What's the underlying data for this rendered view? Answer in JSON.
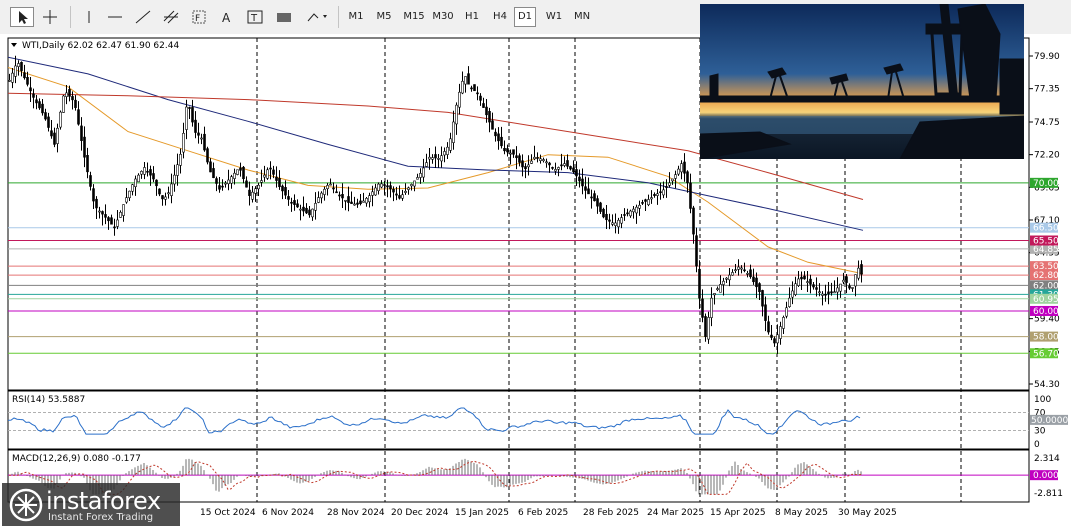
{
  "toolbar": {
    "timeframes": [
      "M1",
      "M5",
      "M15",
      "M30",
      "H1",
      "H4",
      "D1",
      "W1",
      "MN"
    ],
    "active_timeframe": "D1"
  },
  "chart_data": {
    "type": "candlestick",
    "symbol": "WTI",
    "period": "Daily",
    "ohlc_label": "WTI,Daily  62.02 62.47 61.90 62.44",
    "x_labels": [
      "15 Oct 2024",
      "6 Nov 2024",
      "28 Nov 2024",
      "20 Dec 2024",
      "15 Jan 2025",
      "6 Feb 2025",
      "28 Feb 2025",
      "24 Mar 2025",
      "15 Apr 2025",
      "8 May 2025",
      "30 May 2025"
    ],
    "y_ticks": [
      "79.90",
      "77.35",
      "74.75",
      "72.20",
      "69.65",
      "67.10",
      "64.55",
      "59.40",
      "56.85",
      "54.30"
    ],
    "ylim": [
      54.3,
      79.9
    ],
    "price_levels": [
      {
        "value": 70.0,
        "label": "70.00",
        "color": "#2ea62e"
      },
      {
        "value": 66.5,
        "label": "66.50",
        "color": "#a9c9e8"
      },
      {
        "value": 64.85,
        "label": "64.85",
        "color": "#b0b0b0"
      },
      {
        "value": 65.5,
        "label": "65.50",
        "color": "#c2185b"
      },
      {
        "value": 63.5,
        "label": "63.50",
        "color": "#e57373"
      },
      {
        "value": 62.8,
        "label": "62.80",
        "color": "#e57373"
      },
      {
        "value": 62.0,
        "label": "62.00",
        "color": "#808080"
      },
      {
        "value": 61.3,
        "label": "61.30",
        "color": "#26a69a"
      },
      {
        "value": 60.95,
        "label": "60.95",
        "color": "#9fd39f"
      },
      {
        "value": 60.0,
        "label": "60.00",
        "color": "#c000c0"
      },
      {
        "value": 58.0,
        "label": "58.00",
        "color": "#b0a070"
      },
      {
        "value": 56.7,
        "label": "56.70",
        "color": "#66cc33"
      }
    ],
    "close_series": [
      [
        0,
        78.0
      ],
      [
        8,
        79.5
      ],
      [
        15,
        78.2
      ],
      [
        25,
        76.5
      ],
      [
        35,
        75.2
      ],
      [
        45,
        73.0
      ],
      [
        55,
        77.2
      ],
      [
        65,
        76.3
      ],
      [
        75,
        72.0
      ],
      [
        85,
        68.2
      ],
      [
        95,
        67.4
      ],
      [
        105,
        66.5
      ],
      [
        115,
        68.5
      ],
      [
        125,
        70.2
      ],
      [
        135,
        71.2
      ],
      [
        145,
        70.2
      ],
      [
        152,
        68.7
      ],
      [
        158,
        69.0
      ],
      [
        165,
        70.6
      ],
      [
        172,
        72.5
      ],
      [
        178,
        76.6
      ],
      [
        185,
        74.0
      ],
      [
        192,
        73.5
      ],
      [
        200,
        71.0
      ],
      [
        210,
        69.5
      ],
      [
        220,
        70.3
      ],
      [
        230,
        71.2
      ],
      [
        240,
        69.0
      ],
      [
        250,
        69.9
      ],
      [
        260,
        71.3
      ],
      [
        270,
        69.7
      ],
      [
        280,
        68.6
      ],
      [
        290,
        68.0
      ],
      [
        300,
        67.5
      ],
      [
        310,
        69.0
      ],
      [
        320,
        70.0
      ],
      [
        330,
        69.0
      ],
      [
        340,
        68.4
      ],
      [
        350,
        68.3
      ],
      [
        360,
        69.0
      ],
      [
        370,
        70.0
      ],
      [
        380,
        69.6
      ],
      [
        390,
        68.8
      ],
      [
        400,
        69.7
      ],
      [
        410,
        70.6
      ],
      [
        420,
        72.0
      ],
      [
        430,
        71.9
      ],
      [
        440,
        73.0
      ],
      [
        448,
        76.5
      ],
      [
        455,
        78.5
      ],
      [
        460,
        77.5
      ],
      [
        468,
        77.0
      ],
      [
        476,
        75.5
      ],
      [
        485,
        73.8
      ],
      [
        495,
        72.5
      ],
      [
        505,
        72.2
      ],
      [
        515,
        71.0
      ],
      [
        525,
        72.0
      ],
      [
        535,
        71.8
      ],
      [
        545,
        71.0
      ],
      [
        555,
        71.5
      ],
      [
        565,
        70.8
      ],
      [
        575,
        69.5
      ],
      [
        585,
        68.6
      ],
      [
        595,
        67.2
      ],
      [
        605,
        66.8
      ],
      [
        615,
        67.5
      ],
      [
        625,
        68.0
      ],
      [
        635,
        68.5
      ],
      [
        645,
        69.0
      ],
      [
        655,
        69.5
      ],
      [
        665,
        70.5
      ],
      [
        672,
        71.5
      ],
      [
        678,
        70.0
      ],
      [
        684,
        66.0
      ],
      [
        690,
        61.0
      ],
      [
        696,
        58.0
      ],
      [
        702,
        61.0
      ],
      [
        710,
        62.0
      ],
      [
        720,
        62.8
      ],
      [
        730,
        63.5
      ],
      [
        740,
        62.8
      ],
      [
        750,
        61.5
      ],
      [
        758,
        58.5
      ],
      [
        765,
        57.5
      ],
      [
        772,
        59.0
      ],
      [
        780,
        61.0
      ],
      [
        788,
        62.5
      ],
      [
        795,
        62.5
      ],
      [
        805,
        61.8
      ],
      [
        815,
        61.2
      ],
      [
        825,
        61.5
      ],
      [
        835,
        62.5
      ],
      [
        842,
        61.5
      ],
      [
        848,
        63.5
      ],
      [
        855,
        62.4
      ]
    ],
    "ma_series": [
      {
        "name": "MA fast",
        "color": "#e59a2a",
        "points": [
          [
            0,
            79.0
          ],
          [
            60,
            77.5
          ],
          [
            120,
            74.0
          ],
          [
            180,
            72.5
          ],
          [
            240,
            71.0
          ],
          [
            300,
            69.8
          ],
          [
            360,
            69.5
          ],
          [
            420,
            69.6
          ],
          [
            480,
            70.8
          ],
          [
            540,
            72.2
          ],
          [
            600,
            72.0
          ],
          [
            660,
            70.5
          ],
          [
            700,
            68.5
          ],
          [
            760,
            65.0
          ],
          [
            800,
            63.8
          ],
          [
            855,
            62.9
          ]
        ]
      },
      {
        "name": "MA medium",
        "color": "#1f2a7a",
        "points": [
          [
            0,
            79.8
          ],
          [
            80,
            78.5
          ],
          [
            160,
            76.5
          ],
          [
            240,
            74.8
          ],
          [
            320,
            73.0
          ],
          [
            400,
            71.3
          ],
          [
            480,
            71.0
          ],
          [
            560,
            70.8
          ],
          [
            640,
            70.0
          ],
          [
            700,
            69.0
          ],
          [
            760,
            68.0
          ],
          [
            855,
            66.3
          ]
        ]
      },
      {
        "name": "MA slow",
        "color": "#c0392b",
        "points": [
          [
            0,
            77.0
          ],
          [
            120,
            76.8
          ],
          [
            240,
            76.5
          ],
          [
            360,
            76.0
          ],
          [
            440,
            75.5
          ],
          [
            520,
            74.5
          ],
          [
            600,
            73.5
          ],
          [
            680,
            72.5
          ],
          [
            760,
            70.8
          ],
          [
            855,
            68.7
          ]
        ]
      }
    ],
    "rsi": {
      "label": "RSI(14) 53.5887",
      "ticks": [
        "100",
        "70",
        "50.0000",
        "30",
        "0"
      ],
      "levels": [
        70,
        30
      ],
      "value": 53.5887
    },
    "macd": {
      "label": "MACD(12,26,9) 0.080 -0.177",
      "ticks": [
        "2.314",
        "0.000",
        "-2.811"
      ],
      "value": 0.08,
      "signal": -0.177
    }
  },
  "photo": {
    "description_icon": "oil-pump-sunset-photo"
  },
  "logo": {
    "name": "instaforex",
    "tagline": "Instant Forex Trading"
  }
}
